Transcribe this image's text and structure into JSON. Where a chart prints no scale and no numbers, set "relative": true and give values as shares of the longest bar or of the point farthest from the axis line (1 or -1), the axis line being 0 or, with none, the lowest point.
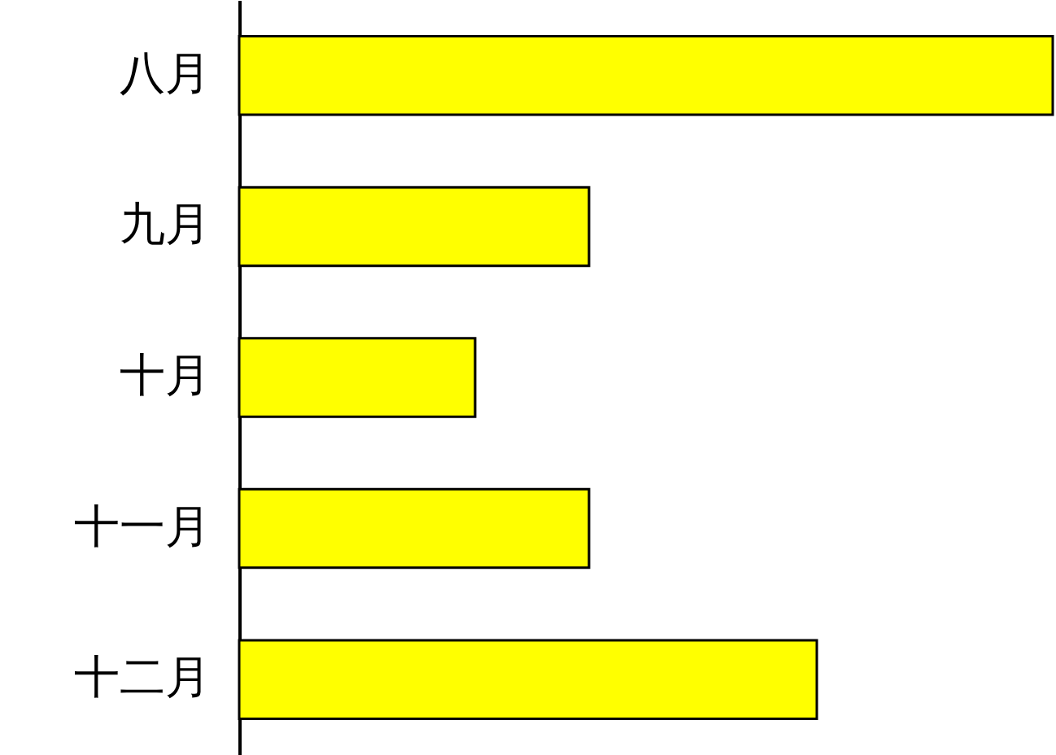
{
  "chart_data": {
    "type": "bar",
    "orientation": "horizontal",
    "relative": true,
    "categories": [
      "八月",
      "九月",
      "十月",
      "十一月",
      "十二月"
    ],
    "values": [
      1,
      0.43,
      0.29,
      0.43,
      0.71
    ],
    "color": "#ffff00"
  }
}
